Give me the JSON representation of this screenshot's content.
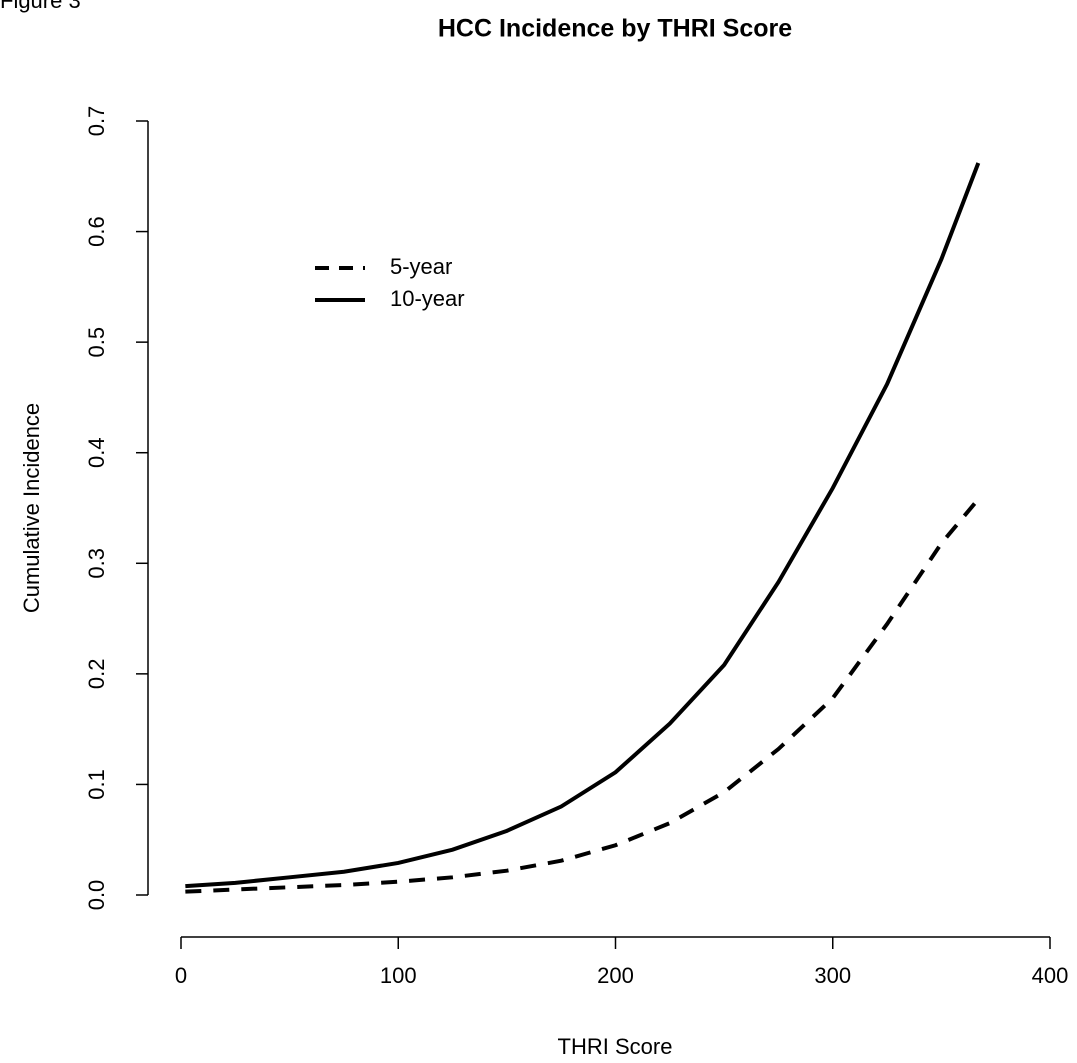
{
  "chart_data": {
    "type": "line",
    "corner_label": "Figure 3",
    "title": "HCC Incidence by THRI Score",
    "x_label": "THRI Score",
    "y_label": "Cumulative Incidence",
    "x": [
      2,
      25,
      50,
      75,
      100,
      125,
      150,
      175,
      200,
      225,
      250,
      275,
      300,
      325,
      350,
      367
    ],
    "series": [
      {
        "name": "5-year",
        "color": "#000000",
        "linestyle": "dashed",
        "values": [
          0.003,
          0.005,
          0.007,
          0.009,
          0.012,
          0.016,
          0.022,
          0.031,
          0.045,
          0.065,
          0.093,
          0.132,
          0.178,
          0.245,
          0.318,
          0.358
        ]
      },
      {
        "name": "10-year",
        "color": "#000000",
        "linestyle": "solid",
        "values": [
          0.008,
          0.011,
          0.016,
          0.021,
          0.029,
          0.041,
          0.058,
          0.08,
          0.111,
          0.155,
          0.208,
          0.283,
          0.368,
          0.462,
          0.575,
          0.662
        ]
      }
    ],
    "xlim": [
      0,
      400
    ],
    "xticks": [
      0,
      100,
      200,
      300,
      400
    ],
    "ylim": [
      0,
      0.7
    ],
    "yticks": [
      {
        "value": 0,
        "label": "0.0"
      },
      0.1,
      0.2,
      0.3,
      0.4,
      0.5,
      0.6,
      0.7
    ],
    "legend": "top-left",
    "grid": false
  }
}
